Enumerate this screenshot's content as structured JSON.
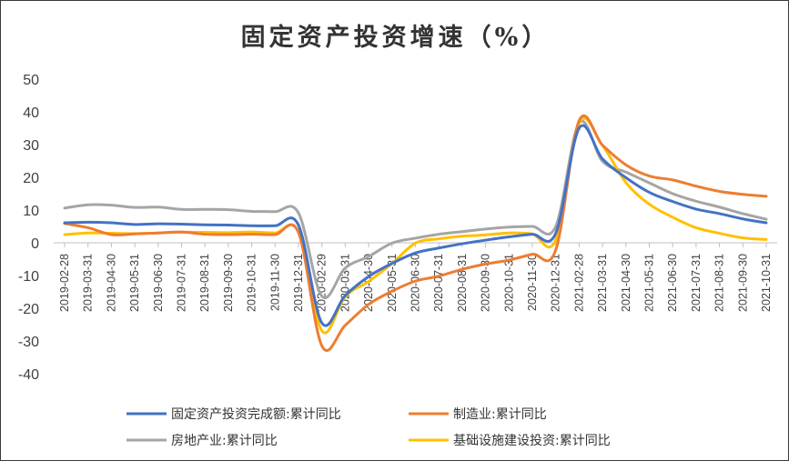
{
  "chart_data": {
    "type": "line",
    "title": "固定资产投资增速（%）",
    "xlabel": "",
    "ylabel": "",
    "ylim": [
      -40,
      50
    ],
    "yticks": [
      -40,
      -30,
      -20,
      -10,
      0,
      10,
      20,
      30,
      40,
      50
    ],
    "grid": false,
    "legend_position": "bottom",
    "categories": [
      "2019-02-28",
      "2019-03-31",
      "2019-04-30",
      "2019-05-31",
      "2019-06-30",
      "2019-07-31",
      "2019-08-31",
      "2019-09-30",
      "2019-10-31",
      "2019-11-30",
      "2019-12-31",
      "2020-02-29",
      "2020-03-31",
      "2020-04-30",
      "2020-05-31",
      "2020-06-30",
      "2020-07-31",
      "2020-08-31",
      "2020-09-30",
      "2020-10-31",
      "2020-11-30",
      "2020-12-31",
      "2021-02-28",
      "2021-03-31",
      "2021-04-30",
      "2021-05-31",
      "2021-06-30",
      "2021-07-31",
      "2021-08-31",
      "2021-09-30",
      "2021-10-31"
    ],
    "series": [
      {
        "name": "固定资产投资完成额:累计同比",
        "color": "#4472C4",
        "values": [
          6.1,
          6.3,
          6.1,
          5.6,
          5.8,
          5.7,
          5.5,
          5.4,
          5.2,
          5.2,
          5.4,
          -24.5,
          -16.1,
          -10.3,
          -6.3,
          -3.1,
          -1.6,
          -0.3,
          0.8,
          1.8,
          2.6,
          2.9,
          35.0,
          25.6,
          19.9,
          15.4,
          12.6,
          10.3,
          8.9,
          7.3,
          6.1
        ]
      },
      {
        "name": "制造业:累计同比",
        "color": "#ED7D31",
        "values": [
          5.9,
          4.6,
          2.5,
          2.7,
          3.0,
          3.3,
          2.6,
          2.5,
          2.6,
          2.5,
          3.1,
          -31.5,
          -25.2,
          -18.8,
          -14.8,
          -11.7,
          -10.2,
          -8.1,
          -6.5,
          -5.3,
          -3.5,
          -2.2,
          37.3,
          29.8,
          23.8,
          20.4,
          19.2,
          17.3,
          15.7,
          14.8,
          14.2
        ]
      },
      {
        "name": "房地产业:累计同比",
        "color": "#A5A5A5",
        "values": [
          10.6,
          11.6,
          11.5,
          10.8,
          10.9,
          10.2,
          10.2,
          10.1,
          9.6,
          9.5,
          9.1,
          -16.3,
          -7.7,
          -4.2,
          -0.1,
          1.4,
          2.6,
          3.4,
          4.2,
          4.8,
          5.0,
          5.0,
          36.6,
          24.9,
          21.6,
          18.3,
          15.0,
          12.7,
          10.9,
          8.9,
          7.2
        ]
      },
      {
        "name": "基础设施建设投资:累计同比",
        "color": "#FFC000",
        "values": [
          2.5,
          3.0,
          2.9,
          2.8,
          3.0,
          3.2,
          3.2,
          3.1,
          3.3,
          3.0,
          3.3,
          -26.9,
          -16.4,
          -11.8,
          -6.3,
          -0.1,
          1.2,
          2.0,
          2.4,
          3.0,
          2.7,
          0.9,
          36.6,
          29.7,
          18.4,
          11.8,
          7.8,
          4.6,
          2.9,
          1.5,
          1.0
        ]
      }
    ]
  }
}
